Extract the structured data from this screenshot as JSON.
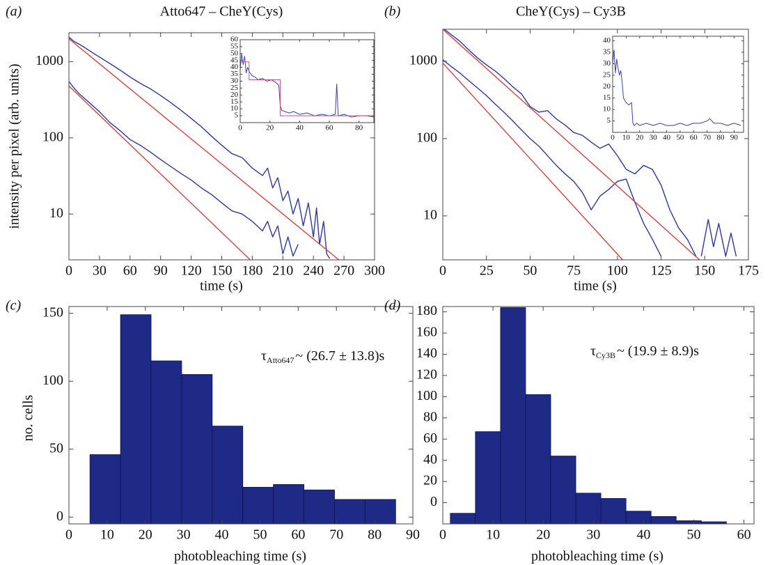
{
  "chart_data": [
    {
      "type": "line",
      "panel": "(a)",
      "title": "Atto647 – CheY(Cys)",
      "x_label": "time (s)",
      "y_label": "intensity per pixel (arb. units)",
      "yscale": "log",
      "xlim": [
        0,
        300
      ],
      "ylim": [
        2.5,
        2400
      ],
      "xticks": [
        0,
        30,
        60,
        90,
        120,
        150,
        180,
        210,
        240,
        270,
        300
      ],
      "yticks": [
        10,
        100,
        1000
      ],
      "series": [
        {
          "color": "#2c36a6",
          "x": [
            0,
            5,
            10,
            15,
            20,
            30,
            40,
            50,
            60,
            70,
            80,
            90,
            100,
            110,
            120,
            130,
            140,
            150,
            160,
            170,
            180,
            190,
            195,
            200,
            205,
            210,
            215,
            220,
            225,
            230,
            235,
            240,
            243,
            246,
            250,
            253,
            256
          ],
          "values": [
            2100,
            1850,
            1700,
            1550,
            1400,
            1150,
            950,
            780,
            630,
            520,
            440,
            360,
            290,
            230,
            180,
            140,
            105,
            80,
            62,
            55,
            40,
            32,
            40,
            22,
            30,
            15,
            20,
            10,
            16,
            7,
            14,
            5,
            12,
            4,
            8,
            3,
            2.6
          ]
        },
        {
          "color": "#2c36a6",
          "x": [
            0,
            5,
            10,
            20,
            30,
            40,
            50,
            60,
            70,
            80,
            90,
            100,
            110,
            120,
            130,
            140,
            150,
            160,
            170,
            180,
            190,
            195,
            200,
            205,
            210,
            215,
            220,
            225
          ],
          "values": [
            550,
            450,
            380,
            290,
            220,
            160,
            125,
            95,
            80,
            65,
            52,
            42,
            34,
            28,
            22,
            18,
            14,
            11,
            10,
            8,
            6,
            8,
            5,
            7,
            3,
            5,
            2.8,
            4
          ]
        },
        {
          "color": "#d9413f",
          "x": [
            0,
            265
          ],
          "values": [
            2000,
            2.5
          ]
        },
        {
          "color": "#d9413f",
          "x": [
            0,
            178
          ],
          "values": [
            480,
            2.5
          ]
        }
      ],
      "inset": {
        "type": "line",
        "xlim": [
          0,
          90
        ],
        "ylim": [
          0,
          60
        ],
        "xticks": [
          0,
          20,
          40,
          60,
          80
        ],
        "yticks": [
          5,
          10,
          15,
          20,
          25,
          30,
          35,
          40,
          45,
          50,
          55,
          60
        ],
        "series": [
          {
            "color": "#3a3fb0",
            "x": [
              0,
              1,
              2,
              3,
              4,
              5,
              6,
              8,
              10,
              12,
              15,
              18,
              21,
              24,
              26,
              27,
              28,
              30,
              33,
              36,
              40,
              45,
              50,
              55,
              60,
              64,
              65,
              66,
              70,
              75,
              80,
              85,
              90
            ],
            "values": [
              38,
              50,
              42,
              48,
              36,
              40,
              37,
              34,
              33,
              31,
              32,
              30,
              31,
              29,
              27,
              12,
              9,
              8,
              7,
              8,
              6,
              7,
              5,
              6,
              5,
              6,
              28,
              5,
              6,
              4,
              5,
              5,
              4
            ]
          },
          {
            "color": "#c8508a",
            "x": [
              0,
              6,
              6,
              27,
              27,
              90
            ],
            "values": [
              44,
              44,
              31,
              31,
              5,
              5
            ]
          }
        ]
      }
    },
    {
      "type": "line",
      "panel": "(b)",
      "title": "CheY(Cys) – Cy3B",
      "x_label": "time (s)",
      "yscale": "log",
      "xlim": [
        0,
        175
      ],
      "ylim": [
        2.7,
        2600
      ],
      "xticks": [
        0,
        25,
        50,
        75,
        100,
        125,
        150,
        175
      ],
      "yticks": [
        10,
        100,
        1000
      ],
      "series": [
        {
          "color": "#2c36a6",
          "x": [
            0,
            5,
            10,
            15,
            20,
            25,
            30,
            35,
            40,
            45,
            50,
            55,
            60,
            65,
            70,
            75,
            80,
            85,
            90,
            95,
            100,
            105,
            110,
            115,
            120,
            125,
            130,
            135,
            140,
            145,
            147,
            148,
            152,
            155,
            158,
            162,
            165,
            168
          ],
          "values": [
            2700,
            2200,
            1800,
            1400,
            1100,
            900,
            750,
            600,
            470,
            380,
            260,
            220,
            230,
            180,
            150,
            120,
            110,
            90,
            75,
            85,
            60,
            40,
            35,
            45,
            40,
            25,
            12,
            7,
            5,
            3,
            null,
            3,
            9,
            4,
            8,
            3,
            6,
            3
          ]
        },
        {
          "color": "#2c36a6",
          "x": [
            0,
            5,
            10,
            15,
            20,
            25,
            30,
            35,
            40,
            45,
            50,
            55,
            60,
            65,
            70,
            75,
            80,
            85,
            90,
            95,
            100,
            105,
            110,
            115,
            120,
            125
          ],
          "values": [
            1050,
            850,
            700,
            560,
            450,
            360,
            280,
            220,
            170,
            130,
            100,
            80,
            60,
            45,
            35,
            28,
            20,
            12,
            18,
            22,
            28,
            30,
            15,
            8,
            5,
            3
          ]
        },
        {
          "color": "#d9413f",
          "x": [
            0,
            147
          ],
          "values": [
            2600,
            2.7
          ]
        },
        {
          "color": "#d9413f",
          "x": [
            0,
            103
          ],
          "values": [
            950,
            2.7
          ]
        }
      ],
      "inset": {
        "type": "line",
        "xlim": [
          0,
          97
        ],
        "ylim": [
          0,
          42
        ],
        "xticks": [
          0,
          10,
          20,
          30,
          40,
          50,
          60,
          70,
          80,
          90
        ],
        "yticks": [
          5,
          10,
          15,
          20,
          25,
          30,
          35,
          40
        ],
        "series": [
          {
            "color": "#3a3fb0",
            "x": [
              0,
              1,
              2,
              3,
              4,
              5,
              6,
              7,
              8,
              9,
              10,
              12,
              14,
              15,
              16,
              18,
              20,
              25,
              30,
              35,
              40,
              45,
              50,
              55,
              60,
              65,
              70,
              72,
              75,
              80,
              85,
              90,
              95
            ],
            "values": [
              30,
              36,
              26,
              32,
              28,
              25,
              27,
              22,
              15,
              14,
              13,
              12,
              13,
              4,
              3,
              4,
              3,
              4,
              3,
              4,
              3,
              3,
              4,
              3,
              4,
              4,
              5,
              6,
              4,
              4,
              3,
              4,
              3
            ]
          }
        ]
      }
    },
    {
      "type": "histogram",
      "panel": "(c)",
      "x_label": "photobleaching time (s)",
      "y_label": "no. cells",
      "annotation": {
        "symbol": "τ",
        "subscript": "Atto647",
        "text": "~ (26.7 ± 13.8)s"
      },
      "xlim": [
        0,
        90
      ],
      "ylim": [
        -5,
        155
      ],
      "xticks": [
        0,
        10,
        20,
        30,
        40,
        50,
        60,
        70,
        80,
        90
      ],
      "yticks": [
        0,
        50,
        100,
        150
      ],
      "color": "#1e2a86",
      "bins": [
        5.5,
        13.5,
        21.5,
        29.5,
        37.5,
        45.5,
        53.5,
        61.5,
        69.5,
        77.5,
        85.5
      ],
      "values": [
        46,
        149,
        115,
        105,
        67,
        22,
        24,
        20,
        13,
        13
      ]
    },
    {
      "type": "histogram",
      "panel": "(d)",
      "x_label": "photobleaching time (s)",
      "annotation": {
        "symbol": "τ",
        "subscript": "Cy3B",
        "text": "~ (19.9 ± 8.9)s"
      },
      "xlim": [
        0,
        62
      ],
      "ylim": [
        -20,
        185
      ],
      "xticks": [
        0,
        10,
        20,
        30,
        40,
        50,
        60
      ],
      "yticks": [
        0,
        20,
        40,
        60,
        80,
        100,
        120,
        140,
        160,
        180
      ],
      "color": "#1e2a86",
      "bins": [
        1.5,
        6.5,
        11.5,
        16.5,
        21.5,
        26.5,
        31.5,
        36.5,
        41.5,
        46.5,
        51.5,
        56.5
      ],
      "values": [
        -10,
        67,
        184,
        102,
        44,
        9,
        4,
        -8,
        -13,
        -17,
        -18
      ]
    }
  ]
}
